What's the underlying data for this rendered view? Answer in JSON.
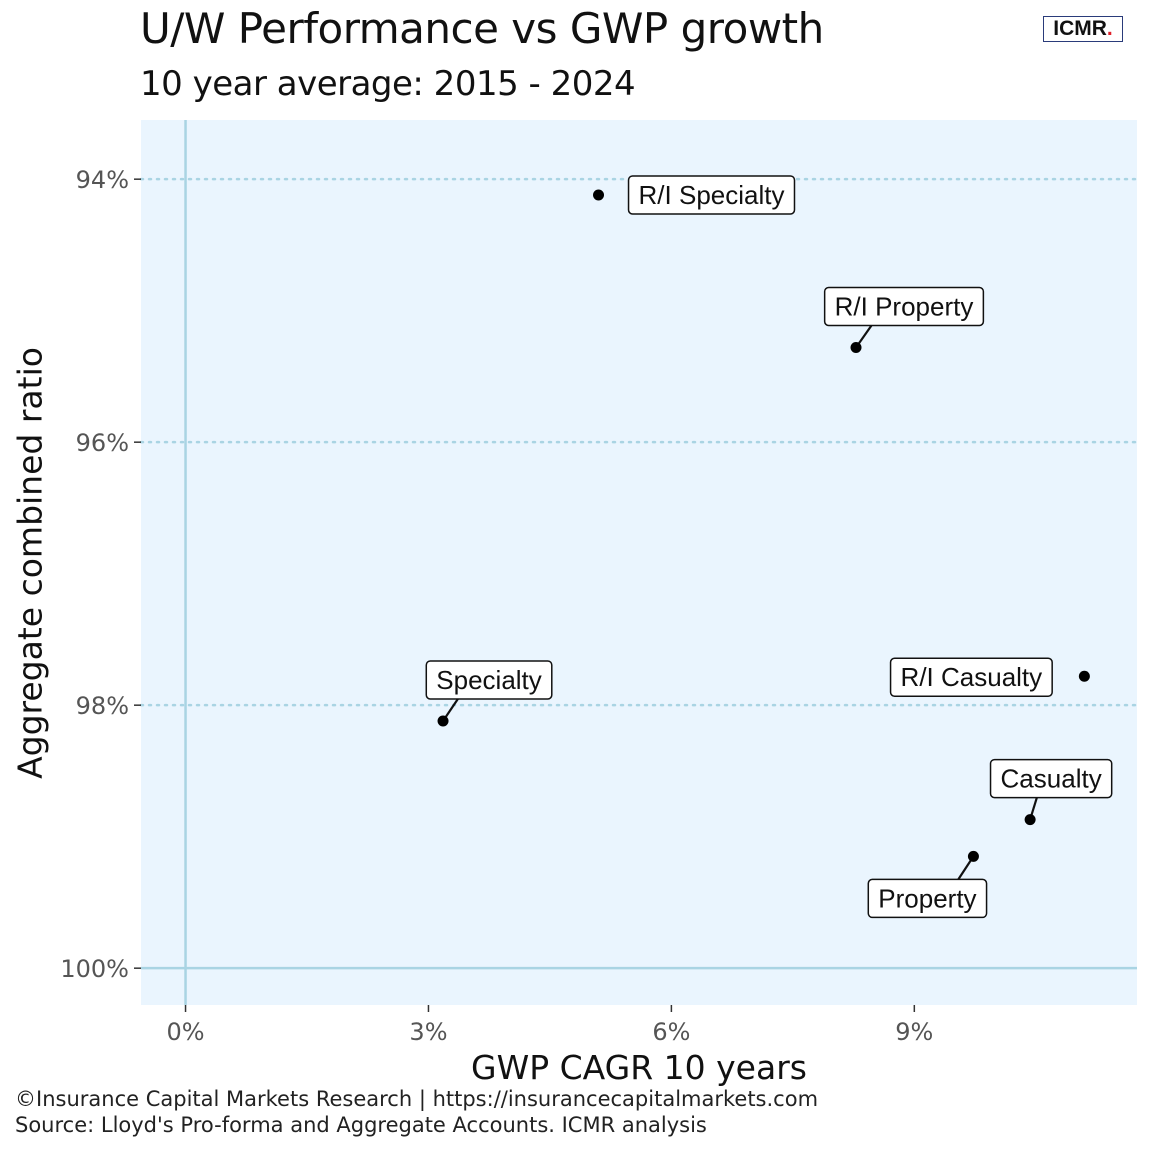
{
  "header": {
    "title": "U/W Performance vs GWP growth",
    "subtitle": "10 year average: 2015 - 2024",
    "logo_text": "ICMR",
    "logo_dot": "."
  },
  "footer": {
    "copyright": "©Insurance Capital Markets Research | https://insurancecapitalmarkets.com",
    "source": "Source: Lloyd's Pro-forma and Aggregate Accounts. ICMR analysis"
  },
  "colors": {
    "panel_bg": "#eaf5fe",
    "axis_line": "#a9d4e3",
    "grid_line": "#a9d4e3",
    "point": "#000000",
    "logo_accent": "#e0202a"
  },
  "chart_data": {
    "type": "scatter",
    "xlabel": "GWP CAGR 10 years",
    "ylabel": "Aggregate combined ratio",
    "xlim": [
      -0.55,
      11.75
    ],
    "ylim": [
      100.28,
      93.55
    ],
    "y_reversed": true,
    "x_ticks": [
      0,
      3,
      6,
      9
    ],
    "x_tick_labels": [
      "0%",
      "3%",
      "6%",
      "9%"
    ],
    "y_ticks": [
      94,
      96,
      98,
      100
    ],
    "y_tick_labels": [
      "94%",
      "96%",
      "98%",
      "100%"
    ],
    "grid": "horizontal dotted",
    "points": [
      {
        "label": "R/I Specialty",
        "x": 5.1,
        "y": 94.12
      },
      {
        "label": "R/I Property",
        "x": 8.28,
        "y": 95.28
      },
      {
        "label": "Specialty",
        "x": 3.18,
        "y": 98.12
      },
      {
        "label": "R/I Casualty",
        "x": 11.1,
        "y": 97.78
      },
      {
        "label": "Casualty",
        "x": 10.43,
        "y": 98.87
      },
      {
        "label": "Property",
        "x": 9.73,
        "y": 99.15
      }
    ]
  }
}
